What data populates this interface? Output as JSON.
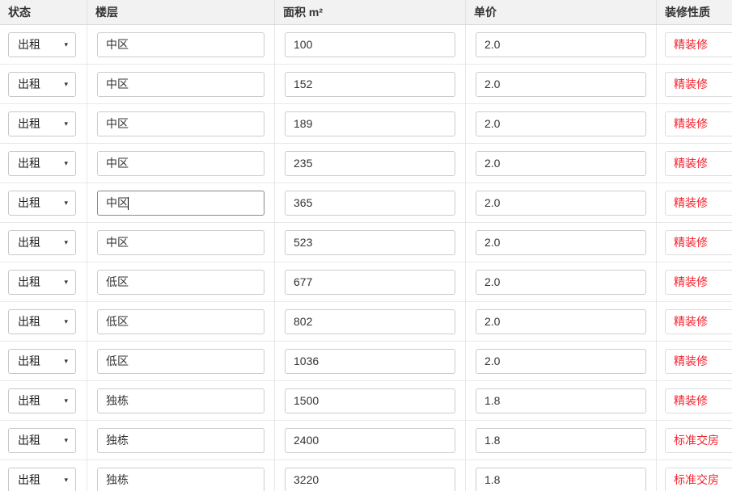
{
  "colors": {
    "header_bg": "#f2f2f2",
    "decoration_text": "#f5222d"
  },
  "icons": {
    "select_caret": "▾"
  },
  "table": {
    "headers": [
      {
        "label": "状态"
      },
      {
        "label": "楼层"
      },
      {
        "label": "面积 m²"
      },
      {
        "label": "单价"
      },
      {
        "label": "装修性质"
      }
    ],
    "rows": [
      {
        "status": "出租",
        "floor": "中区",
        "area": "100",
        "price": "2.0",
        "decoration": "精装修",
        "floor_focused": false
      },
      {
        "status": "出租",
        "floor": "中区",
        "area": "152",
        "price": "2.0",
        "decoration": "精装修",
        "floor_focused": false
      },
      {
        "status": "出租",
        "floor": "中区",
        "area": "189",
        "price": "2.0",
        "decoration": "精装修",
        "floor_focused": false
      },
      {
        "status": "出租",
        "floor": "中区",
        "area": "235",
        "price": "2.0",
        "decoration": "精装修",
        "floor_focused": false
      },
      {
        "status": "出租",
        "floor": "中区",
        "area": "365",
        "price": "2.0",
        "decoration": "精装修",
        "floor_focused": true
      },
      {
        "status": "出租",
        "floor": "中区",
        "area": "523",
        "price": "2.0",
        "decoration": "精装修",
        "floor_focused": false
      },
      {
        "status": "出租",
        "floor": "低区",
        "area": "677",
        "price": "2.0",
        "decoration": "精装修",
        "floor_focused": false
      },
      {
        "status": "出租",
        "floor": "低区",
        "area": "802",
        "price": "2.0",
        "decoration": "精装修",
        "floor_focused": false
      },
      {
        "status": "出租",
        "floor": "低区",
        "area": "1036",
        "price": "2.0",
        "decoration": "精装修",
        "floor_focused": false
      },
      {
        "status": "出租",
        "floor": "独栋",
        "area": "1500",
        "price": "1.8",
        "decoration": "精装修",
        "floor_focused": false
      },
      {
        "status": "出租",
        "floor": "独栋",
        "area": "2400",
        "price": "1.8",
        "decoration": "标准交房",
        "floor_focused": false
      },
      {
        "status": "出租",
        "floor": "独栋",
        "area": "3220",
        "price": "1.8",
        "decoration": "标准交房",
        "floor_focused": false
      }
    ]
  }
}
